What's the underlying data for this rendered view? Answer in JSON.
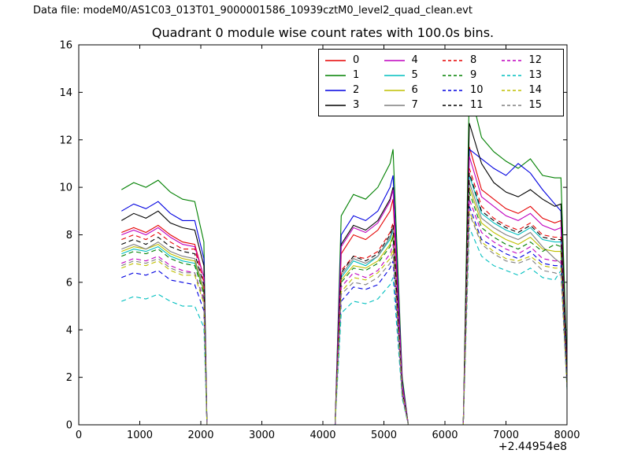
{
  "header": {
    "data_file": "Data file: modeM0/AS1C03_013T01_9000001586_10939cztM0_level2_quad_clean.evt"
  },
  "chart_data": {
    "type": "line",
    "title": "Quadrant 0 module wise count rates with 100.0s bins.",
    "xlabel": "",
    "ylabel": "",
    "x_axis_offset": "+2.44954e8",
    "xlim": [
      0,
      8000
    ],
    "ylim": [
      0,
      16
    ],
    "xticks": [
      0,
      1000,
      2000,
      3000,
      4000,
      5000,
      6000,
      7000,
      8000
    ],
    "yticks": [
      0,
      2,
      4,
      6,
      8,
      10,
      12,
      14,
      16
    ],
    "grid": false,
    "legend_position": "upper right inside",
    "legend_columns": 4,
    "x": [
      700,
      900,
      1100,
      1300,
      1500,
      1700,
      1900,
      2050,
      2100,
      3000,
      4200,
      4300,
      4500,
      4700,
      4900,
      5100,
      5150,
      5300,
      5400,
      6000,
      6300,
      6400,
      6600,
      6800,
      7000,
      7200,
      7400,
      7600,
      7800,
      7900,
      8000
    ],
    "series": [
      {
        "name": "0",
        "color": "#e50000",
        "dash": false,
        "values": [
          8.1,
          8.3,
          8.1,
          8.4,
          8.0,
          7.7,
          7.6,
          6.2,
          0,
          0,
          0,
          7.2,
          8.0,
          7.8,
          8.2,
          9.0,
          9.5,
          1.6,
          0,
          0,
          0,
          11.7,
          9.9,
          9.5,
          9.1,
          8.9,
          9.2,
          8.7,
          8.5,
          8.6,
          2.1
        ]
      },
      {
        "name": "1",
        "color": "#008000",
        "dash": false,
        "values": [
          9.9,
          10.2,
          10.0,
          10.3,
          9.8,
          9.5,
          9.4,
          7.7,
          0,
          0,
          0,
          8.8,
          9.7,
          9.5,
          10.0,
          11.0,
          11.6,
          2.0,
          0,
          0,
          0,
          14.2,
          12.1,
          11.5,
          11.1,
          10.8,
          11.2,
          10.5,
          10.4,
          10.4,
          2.6
        ]
      },
      {
        "name": "2",
        "color": "#0000e0",
        "dash": false,
        "values": [
          9.0,
          9.3,
          9.1,
          9.4,
          8.9,
          8.6,
          8.6,
          7.0,
          0,
          0,
          0,
          8.0,
          8.8,
          8.6,
          9.0,
          10.0,
          10.5,
          1.8,
          0,
          0,
          0,
          11.6,
          11.2,
          10.8,
          10.5,
          11.0,
          10.6,
          9.9,
          9.3,
          9.0,
          2.3
        ]
      },
      {
        "name": "3",
        "color": "#000000",
        "dash": false,
        "values": [
          8.6,
          8.9,
          8.7,
          9.0,
          8.5,
          8.3,
          8.2,
          6.7,
          0,
          0,
          0,
          7.6,
          8.4,
          8.2,
          8.6,
          9.5,
          10.0,
          1.7,
          0,
          0,
          0,
          12.7,
          11.0,
          10.2,
          9.8,
          9.6,
          9.9,
          9.5,
          9.2,
          9.3,
          2.3
        ]
      },
      {
        "name": "4",
        "color": "#bf00bf",
        "dash": false,
        "values": [
          8.0,
          8.2,
          8.0,
          8.3,
          7.9,
          7.6,
          7.5,
          6.2,
          0,
          0,
          0,
          7.5,
          8.3,
          8.1,
          8.5,
          9.4,
          9.9,
          1.7,
          0,
          0,
          0,
          11.3,
          9.6,
          9.2,
          8.8,
          8.6,
          8.9,
          8.4,
          8.2,
          8.3,
          2.1
        ]
      },
      {
        "name": "5",
        "color": "#00bfbf",
        "dash": false,
        "values": [
          7.2,
          7.4,
          7.3,
          7.5,
          7.1,
          6.9,
          6.8,
          5.6,
          0,
          0,
          0,
          6.2,
          6.9,
          6.7,
          7.1,
          7.8,
          8.2,
          1.4,
          0,
          0,
          0,
          10.5,
          8.9,
          8.5,
          8.2,
          8.0,
          8.3,
          7.8,
          7.7,
          7.7,
          1.9
        ]
      },
      {
        "name": "6",
        "color": "#bfbf00",
        "dash": false,
        "values": [
          7.3,
          7.5,
          7.4,
          7.6,
          7.2,
          7.0,
          6.9,
          5.6,
          0,
          0,
          0,
          6.1,
          6.7,
          6.6,
          6.9,
          7.6,
          8.0,
          1.4,
          0,
          0,
          0,
          10.0,
          8.5,
          8.1,
          7.8,
          7.6,
          7.9,
          7.4,
          7.3,
          7.3,
          1.8
        ]
      },
      {
        "name": "7",
        "color": "#7f7f7f",
        "dash": false,
        "values": [
          7.4,
          7.6,
          7.4,
          7.7,
          7.3,
          7.1,
          7.0,
          5.7,
          0,
          0,
          0,
          6.3,
          7.0,
          6.8,
          7.1,
          7.9,
          8.3,
          1.4,
          0,
          0,
          0,
          10.2,
          8.7,
          8.3,
          8.0,
          7.8,
          8.1,
          7.5,
          7.0,
          6.8,
          1.7
        ]
      },
      {
        "name": "8",
        "color": "#e50000",
        "dash": true,
        "values": [
          7.8,
          8.0,
          7.8,
          8.1,
          7.7,
          7.4,
          7.4,
          6.0,
          0,
          0,
          0,
          6.5,
          7.1,
          7.0,
          7.3,
          8.1,
          8.5,
          1.4,
          0,
          0,
          0,
          10.8,
          9.2,
          8.7,
          8.4,
          8.2,
          8.5,
          8.0,
          7.9,
          7.9,
          2.0
        ]
      },
      {
        "name": "9",
        "color": "#008000",
        "dash": true,
        "values": [
          7.1,
          7.3,
          7.2,
          7.4,
          7.0,
          6.8,
          6.7,
          5.5,
          0,
          0,
          0,
          6.0,
          6.6,
          6.5,
          6.8,
          7.5,
          7.9,
          1.3,
          0,
          0,
          0,
          9.8,
          8.3,
          7.9,
          7.6,
          7.4,
          7.7,
          7.3,
          7.6,
          7.5,
          1.9
        ]
      },
      {
        "name": "10",
        "color": "#0000e0",
        "dash": true,
        "values": [
          6.2,
          6.4,
          6.3,
          6.5,
          6.1,
          6.0,
          5.9,
          4.8,
          0,
          0,
          0,
          5.2,
          5.8,
          5.7,
          5.9,
          6.6,
          6.9,
          1.2,
          0,
          0,
          0,
          9.2,
          7.8,
          7.5,
          7.2,
          7.0,
          7.3,
          6.8,
          6.7,
          6.7,
          1.7
        ]
      },
      {
        "name": "11",
        "color": "#000000",
        "dash": true,
        "values": [
          7.6,
          7.8,
          7.6,
          7.9,
          7.5,
          7.3,
          7.2,
          5.9,
          0,
          0,
          0,
          6.4,
          7.1,
          6.9,
          7.2,
          8.0,
          8.4,
          1.4,
          0,
          0,
          0,
          10.6,
          9.0,
          8.6,
          8.3,
          8.1,
          8.4,
          7.9,
          7.8,
          7.8,
          1.9
        ]
      },
      {
        "name": "12",
        "color": "#bf00bf",
        "dash": true,
        "values": [
          6.8,
          7.0,
          6.9,
          7.1,
          6.7,
          6.5,
          6.4,
          5.3,
          0,
          0,
          0,
          5.8,
          6.4,
          6.2,
          6.5,
          7.2,
          7.6,
          1.3,
          0,
          0,
          0,
          9.5,
          8.1,
          7.7,
          7.4,
          7.2,
          7.5,
          7.0,
          6.9,
          6.9,
          1.7
        ]
      },
      {
        "name": "13",
        "color": "#00bfbf",
        "dash": true,
        "values": [
          5.2,
          5.4,
          5.3,
          5.5,
          5.2,
          5.0,
          5.0,
          4.1,
          0,
          0,
          0,
          4.7,
          5.2,
          5.1,
          5.3,
          5.9,
          6.2,
          1.1,
          0,
          0,
          0,
          8.3,
          7.1,
          6.7,
          6.5,
          6.3,
          6.6,
          6.2,
          6.1,
          6.5,
          1.5
        ]
      },
      {
        "name": "14",
        "color": "#bfbf00",
        "dash": true,
        "values": [
          6.6,
          6.8,
          6.7,
          6.9,
          6.5,
          6.3,
          6.3,
          5.1,
          0,
          0,
          0,
          5.6,
          6.2,
          6.1,
          6.4,
          7.0,
          7.4,
          1.3,
          0,
          0,
          0,
          9.0,
          7.7,
          7.3,
          7.0,
          6.9,
          7.1,
          6.7,
          6.6,
          6.6,
          1.6
        ]
      },
      {
        "name": "15",
        "color": "#7f7f7f",
        "dash": true,
        "values": [
          6.7,
          6.9,
          6.8,
          7.0,
          6.6,
          6.4,
          6.4,
          5.2,
          0,
          0,
          0,
          5.5,
          6.0,
          5.9,
          6.2,
          6.8,
          7.2,
          1.2,
          0,
          0,
          0,
          8.9,
          7.6,
          7.2,
          6.9,
          6.8,
          7.0,
          6.5,
          6.4,
          6.3,
          1.6
        ]
      }
    ]
  }
}
